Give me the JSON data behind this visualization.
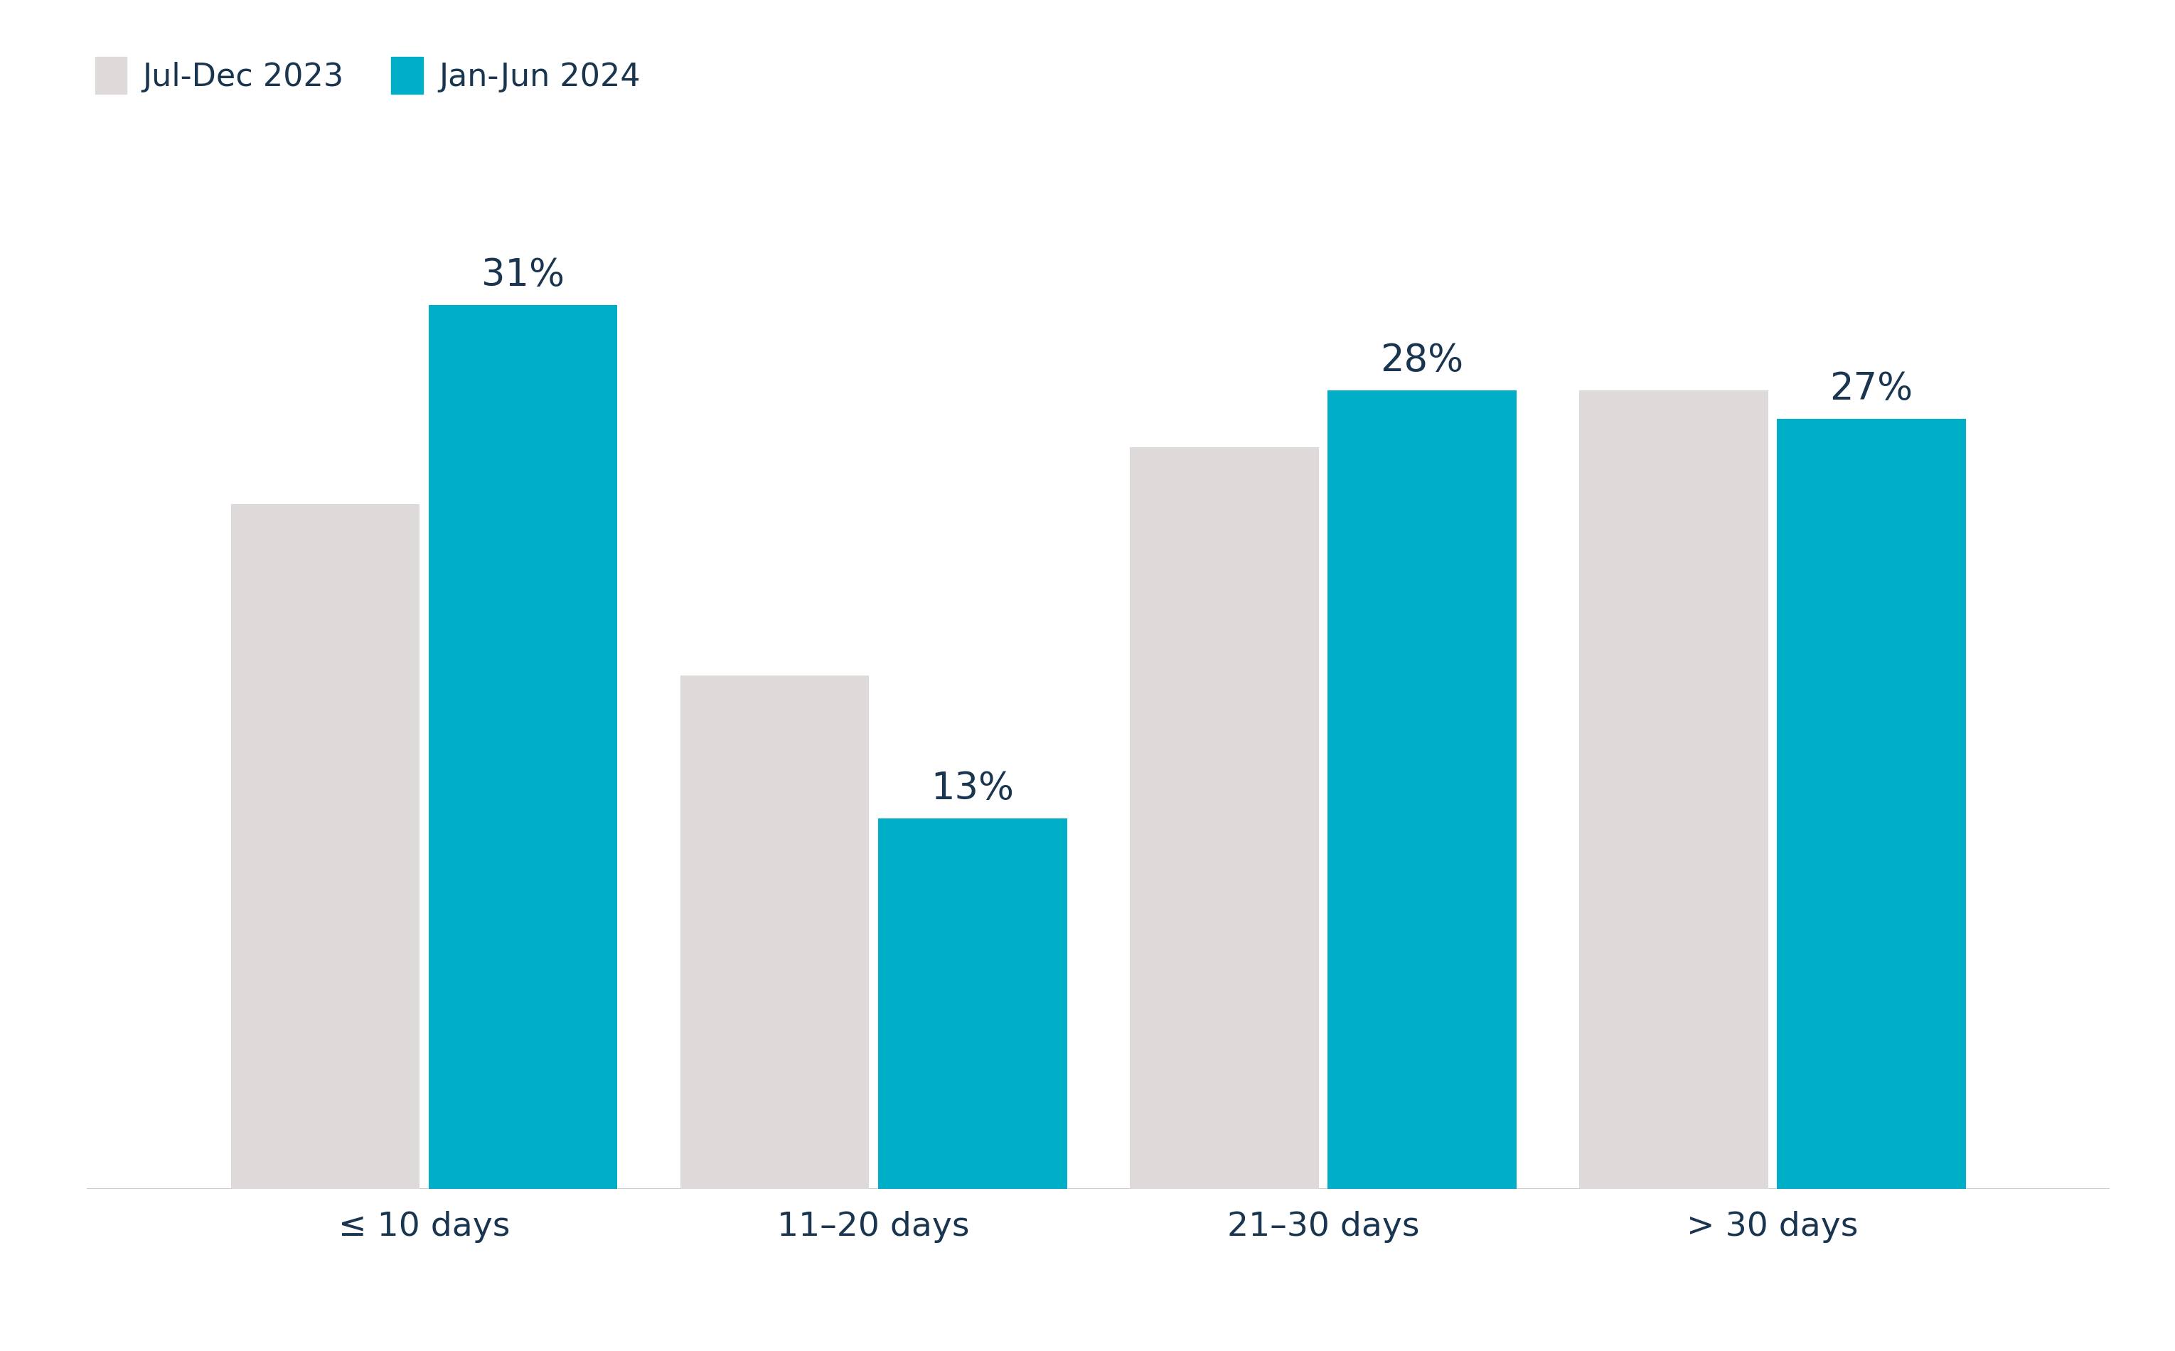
{
  "categories": [
    "≤ 10 days",
    "11–20 days",
    "21–30 days",
    "> 30 days"
  ],
  "series": [
    {
      "label": "Jul-Dec 2023",
      "color": "#dedad9",
      "values": [
        24,
        18,
        26,
        28
      ]
    },
    {
      "label": "Jan-Jun 2024",
      "color": "#00aec7",
      "values": [
        31,
        13,
        28,
        27
      ],
      "show_labels": true
    }
  ],
  "bar_width": 0.42,
  "bar_gap": 0.02,
  "ylim": [
    0,
    36
  ],
  "background_color": "#ffffff",
  "text_color": "#1a3550",
  "tick_fontsize": 34,
  "legend_fontsize": 32,
  "annotation_fontsize": 38,
  "bottom_line_color": "#c8c8c8"
}
